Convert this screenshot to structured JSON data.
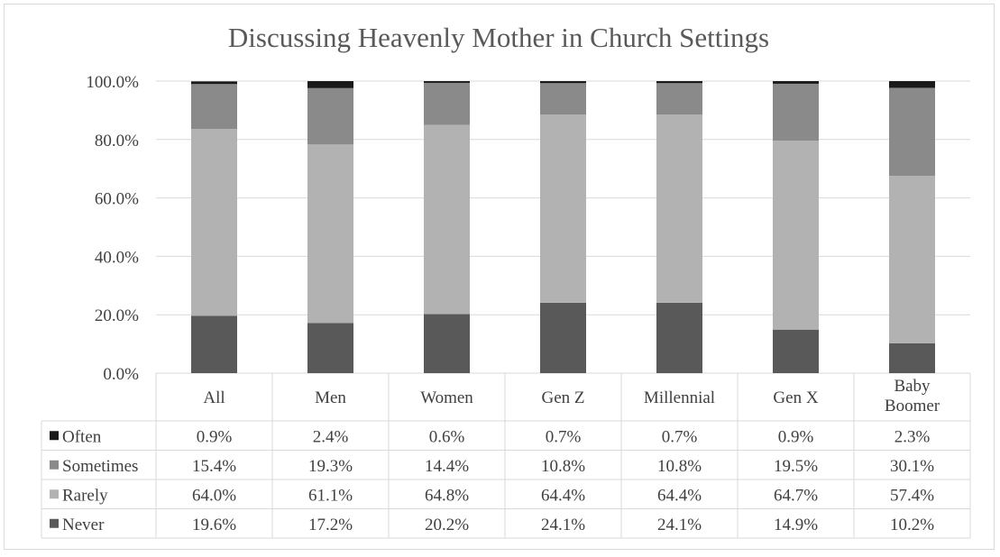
{
  "chart_data": {
    "type": "bar",
    "stacked": true,
    "title": "Discussing Heavenly Mother in Church Settings",
    "xlabel": "",
    "ylabel": "",
    "ylim": [
      0,
      100
    ],
    "yticks": [
      "0.0%",
      "20.0%",
      "40.0%",
      "60.0%",
      "80.0%",
      "100.0%"
    ],
    "grid": true,
    "legend": "data-table-left",
    "categories": [
      "All",
      "Men",
      "Women",
      "Gen Z",
      "Millennial",
      "Gen X",
      "Baby Boomer"
    ],
    "series": [
      {
        "name": "Never",
        "color": "#595959",
        "values": [
          19.6,
          17.2,
          20.2,
          24.1,
          24.1,
          14.9,
          10.2
        ]
      },
      {
        "name": "Rarely",
        "color": "#b2b2b2",
        "values": [
          64.0,
          61.1,
          64.8,
          64.4,
          64.4,
          64.7,
          57.4
        ]
      },
      {
        "name": "Sometimes",
        "color": "#8a8a8a",
        "values": [
          15.4,
          19.3,
          14.4,
          10.8,
          10.8,
          19.5,
          30.1
        ]
      },
      {
        "name": "Often",
        "color": "#1a1a1a",
        "values": [
          0.9,
          2.4,
          0.6,
          0.7,
          0.7,
          0.9,
          2.3
        ]
      }
    ],
    "table_rows": [
      {
        "label": "Often",
        "cells": [
          "0.9%",
          "2.4%",
          "0.6%",
          "0.7%",
          "0.7%",
          "0.9%",
          "2.3%"
        ]
      },
      {
        "label": "Sometimes",
        "cells": [
          "15.4%",
          "19.3%",
          "14.4%",
          "10.8%",
          "10.8%",
          "19.5%",
          "30.1%"
        ]
      },
      {
        "label": "Rarely",
        "cells": [
          "64.0%",
          "61.1%",
          "64.8%",
          "64.4%",
          "64.4%",
          "64.7%",
          "57.4%"
        ]
      },
      {
        "label": "Never",
        "cells": [
          "19.6%",
          "17.2%",
          "20.2%",
          "24.1%",
          "24.1%",
          "14.9%",
          "10.2%"
        ]
      }
    ]
  }
}
